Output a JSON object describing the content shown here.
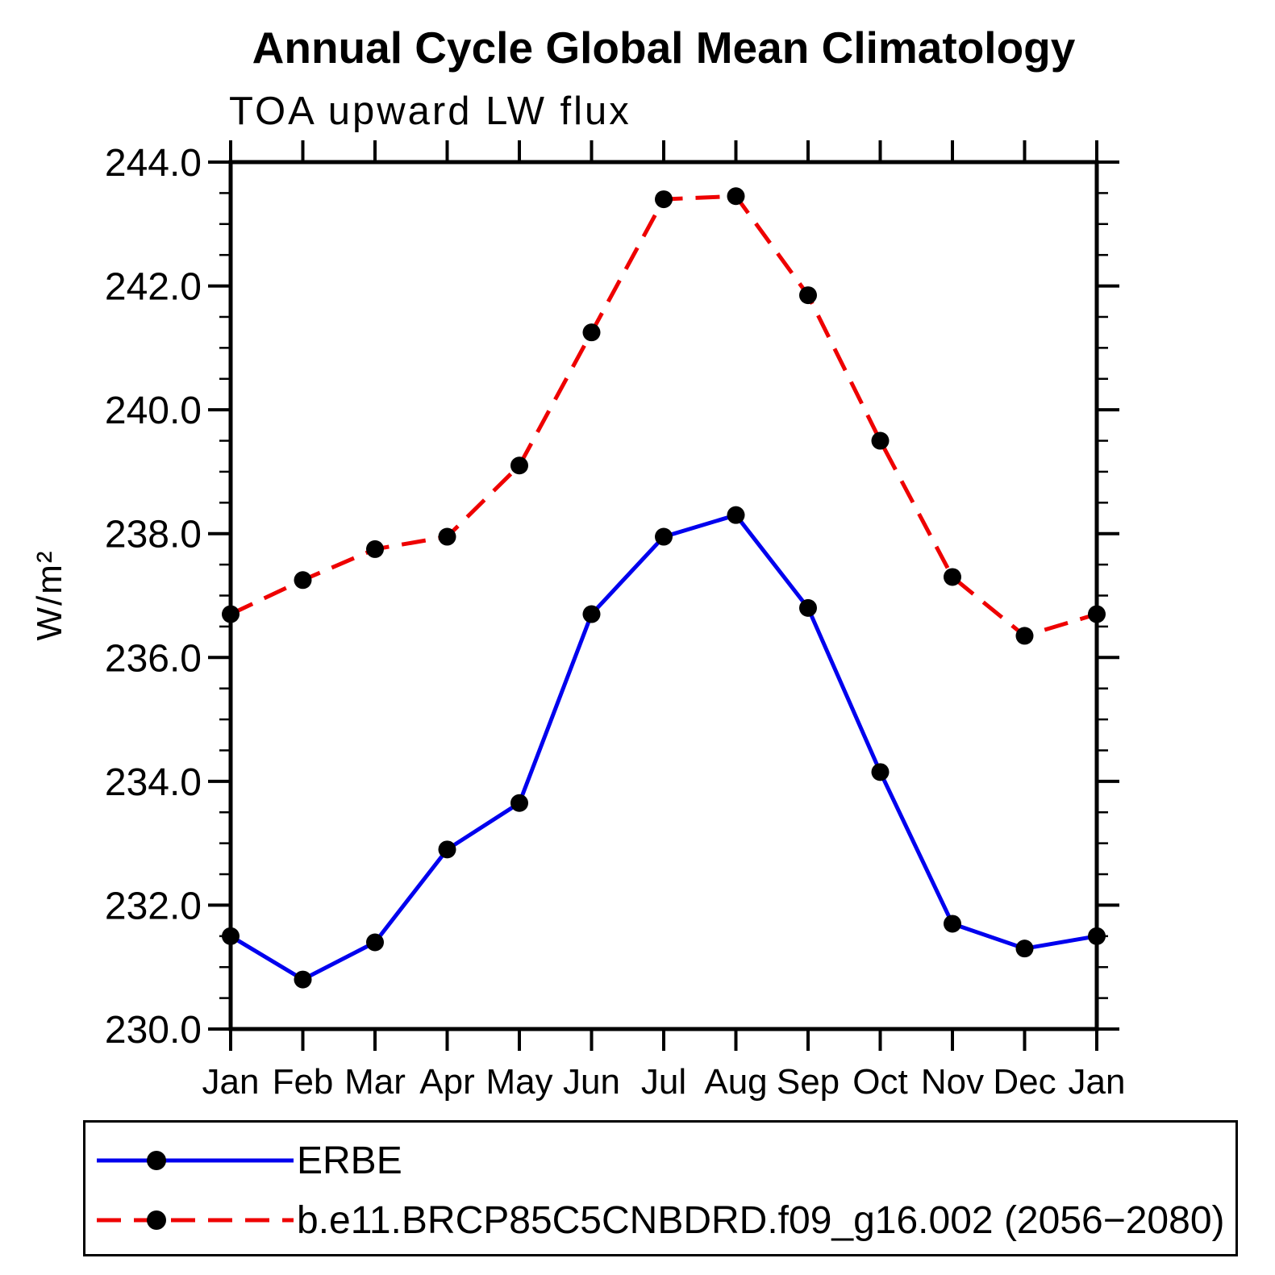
{
  "title": "Annual Cycle Global Mean Climatology",
  "subtitle": "TOA upward LW flux",
  "y_axis_label": "W/m²",
  "chart_data": {
    "type": "line",
    "categories": [
      "Jan",
      "Feb",
      "Mar",
      "Apr",
      "May",
      "Jun",
      "Jul",
      "Aug",
      "Sep",
      "Oct",
      "Nov",
      "Dec",
      "Jan"
    ],
    "series": [
      {
        "name": "ERBE",
        "color": "#0000ee",
        "line_style": "solid",
        "marker": "circle",
        "values": [
          231.5,
          230.8,
          231.4,
          232.9,
          233.65,
          236.7,
          237.95,
          238.3,
          236.8,
          234.15,
          231.7,
          231.3,
          231.5
        ]
      },
      {
        "name": "b.e11.BRCP85C5CNBDRD.f09_g16.002 (2056−2080)",
        "color": "#ee0000",
        "line_style": "dashed",
        "marker": "circle",
        "values": [
          236.7,
          237.25,
          237.75,
          237.95,
          239.1,
          241.25,
          243.4,
          243.45,
          241.85,
          239.5,
          237.3,
          236.35,
          236.7
        ]
      }
    ],
    "ylim": [
      230.0,
      244.0
    ],
    "y_major_step": 2.0,
    "y_minor_step": 0.5,
    "y_tick_labels": [
      "230.0",
      "232.0",
      "234.0",
      "236.0",
      "238.0",
      "240.0",
      "242.0",
      "244.0"
    ],
    "xlabel": "",
    "ylabel": "W/m²",
    "marker_color": "#000000",
    "axis_color": "#000000",
    "grid": "off",
    "legend_position": "bottom"
  }
}
